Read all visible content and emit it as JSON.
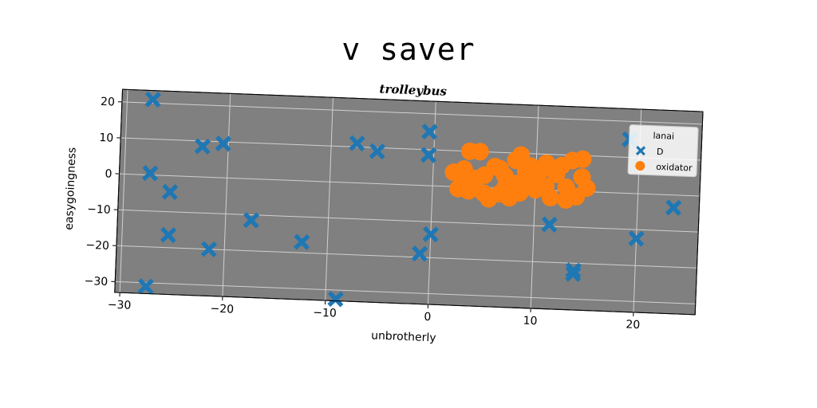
{
  "chart_data": {
    "type": "scatter",
    "suptitle": "v saver",
    "title": "trolleybus",
    "xlabel": "unbrotherly",
    "ylabel": "easygoingness",
    "xlim": [
      -30.5,
      26
    ],
    "ylim": [
      -33,
      23.5
    ],
    "xticks": [
      -30,
      -20,
      -10,
      0,
      10,
      20
    ],
    "yticks": [
      20,
      10,
      0,
      -10,
      -20,
      -30
    ],
    "xtick_labels": [
      "−30",
      "−20",
      "−10",
      "0",
      "10",
      "20"
    ],
    "ytick_labels": [
      "20",
      "10",
      "0",
      "−10",
      "−20",
      "−30"
    ],
    "grid": true,
    "background": "#808080",
    "legend": {
      "title": "lanai",
      "location": "upper right",
      "entries": [
        {
          "label": "D",
          "marker": "X",
          "color": "#1f77b4"
        },
        {
          "label": "oxidator",
          "marker": "o",
          "color": "#ff7f0e"
        }
      ]
    },
    "series": [
      {
        "name": "D",
        "marker": "X",
        "color": "#1f77b4",
        "points": [
          [
            -27.5,
            21
          ],
          [
            -22.5,
            8.5
          ],
          [
            -20.5,
            9.5
          ],
          [
            -27.5,
            0.5
          ],
          [
            -25.5,
            -4.5
          ],
          [
            -25.5,
            -16.5
          ],
          [
            -21.5,
            -20
          ],
          [
            -17.5,
            -11.5
          ],
          [
            -12.5,
            -17
          ],
          [
            -27.5,
            -31
          ],
          [
            -9,
            -32.5
          ],
          [
            -7.5,
            11
          ],
          [
            -5.5,
            9
          ],
          [
            -0.5,
            15
          ],
          [
            -0.5,
            8.5
          ],
          [
            0,
            -13.5
          ],
          [
            -1,
            -19
          ],
          [
            11.5,
            -9.5
          ],
          [
            14,
            -22
          ],
          [
            14,
            -23
          ],
          [
            19,
            15
          ],
          [
            20,
            -12.5
          ],
          [
            23.5,
            -3.5
          ]
        ]
      },
      {
        "name": "oxidator",
        "marker": "o",
        "color": "#ff7f0e",
        "points": [
          [
            2,
            4
          ],
          [
            3,
            5
          ],
          [
            3.5,
            10
          ],
          [
            4.5,
            10
          ],
          [
            4,
            1.5
          ],
          [
            2.5,
            -0.5
          ],
          [
            3.5,
            -1
          ],
          [
            5,
            3.5
          ],
          [
            6,
            6
          ],
          [
            7,
            3.5
          ],
          [
            5.5,
            -3
          ],
          [
            6.5,
            -1.5
          ],
          [
            7,
            0
          ],
          [
            8,
            1.5
          ],
          [
            6.5,
            5.5
          ],
          [
            8,
            8
          ],
          [
            8.5,
            9.5
          ],
          [
            9.5,
            6.5
          ],
          [
            10,
            3
          ],
          [
            9.5,
            2
          ],
          [
            8.5,
            -1
          ],
          [
            10.5,
            5.5
          ],
          [
            11,
            1
          ],
          [
            11.5,
            -2
          ],
          [
            12,
            4.5
          ],
          [
            12.5,
            7
          ],
          [
            13.5,
            8.5
          ],
          [
            14.5,
            9
          ],
          [
            14.5,
            4
          ],
          [
            15,
            1
          ],
          [
            14,
            -1.5
          ],
          [
            13,
            -2.5
          ],
          [
            10,
            0
          ],
          [
            7.5,
            -2.5
          ],
          [
            4,
            2.5
          ],
          [
            9,
            5
          ],
          [
            5,
            -1.5
          ],
          [
            11,
            7.5
          ],
          [
            13,
            1
          ],
          [
            3,
            2
          ]
        ]
      }
    ]
  }
}
